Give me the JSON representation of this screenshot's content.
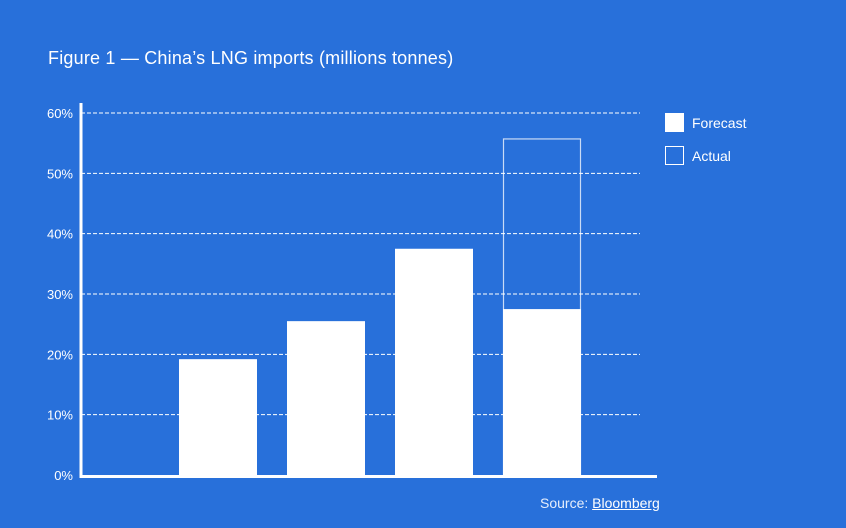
{
  "chart_data": {
    "type": "bar",
    "title": "Figure 1 — China’s LNG imports (millions tonnes)",
    "xlabel": "",
    "ylabel": "",
    "ylim": [
      0,
      60
    ],
    "yticks": [
      "0%",
      "10%",
      "20%",
      "30%",
      "40%",
      "50%",
      "60%"
    ],
    "grid": true,
    "legend_position": "top-right",
    "categories": [
      "",
      "",
      "",
      ""
    ],
    "series": [
      {
        "name": "Forecast",
        "style": "filled",
        "color": "#ffffff",
        "values": [
          19.2,
          25.5,
          37.5,
          27.5
        ]
      },
      {
        "name": "Actual",
        "style": "outline",
        "color": "#ffffff",
        "values": [
          null,
          null,
          null,
          55.7
        ]
      }
    ]
  },
  "colors": {
    "background": "#2870da",
    "foreground": "#ffffff"
  },
  "source": {
    "label": "Source:",
    "link": "Bloomberg"
  }
}
